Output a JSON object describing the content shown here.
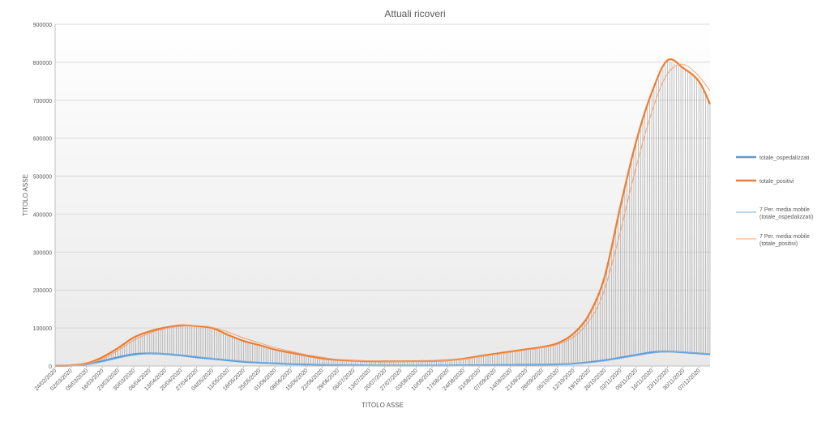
{
  "chart_data": {
    "type": "line",
    "title": "Attuali ricoveri",
    "xlabel": "TITOLO ASSE",
    "ylabel": "TITOLO ASSE",
    "ylim": [
      0,
      900000
    ],
    "y_ticks": [
      0,
      100000,
      200000,
      300000,
      400000,
      500000,
      600000,
      700000,
      800000,
      900000
    ],
    "y_tick_labels": [
      "0",
      "100000",
      "200000",
      "300000",
      "400000",
      "500000",
      "600000",
      "700000",
      "800000",
      "900000"
    ],
    "x_start": "2020-02-24",
    "x_end": "2020-12-12",
    "x_tick_labels": [
      "24/02/2020",
      "02/03/2020",
      "09/03/2020",
      "16/03/2020",
      "23/03/2020",
      "30/03/2020",
      "06/04/2020",
      "13/04/2020",
      "20/04/2020",
      "27/04/2020",
      "04/05/2020",
      "11/05/2020",
      "18/05/2020",
      "25/05/2020",
      "01/06/2020",
      "08/06/2020",
      "15/06/2020",
      "22/06/2020",
      "29/06/2020",
      "06/07/2020",
      "13/07/2020",
      "20/07/2020",
      "27/07/2020",
      "03/08/2020",
      "10/08/2020",
      "17/08/2020",
      "24/08/2020",
      "31/08/2020",
      "07/09/2020",
      "14/09/2020",
      "21/09/2020",
      "28/09/2020",
      "05/10/2020",
      "12/10/2020",
      "19/10/2020",
      "26/10/2020",
      "02/11/2020",
      "09/11/2020",
      "16/11/2020",
      "23/11/2020",
      "30/11/2020",
      "07/12/2020"
    ],
    "grid": true,
    "legend_position": "right",
    "drop_lines": true,
    "series": [
      {
        "name": "totale_ospedalizzati",
        "style": "thick",
        "color": "#5b9bd5",
        "points": [
          [
            "2020-02-24",
            150
          ],
          [
            "2020-03-02",
            1000
          ],
          [
            "2020-03-09",
            4300
          ],
          [
            "2020-03-16",
            13000
          ],
          [
            "2020-03-23",
            23000
          ],
          [
            "2020-03-30",
            31000
          ],
          [
            "2020-04-06",
            33000
          ],
          [
            "2020-04-13",
            31500
          ],
          [
            "2020-04-20",
            28000
          ],
          [
            "2020-04-27",
            23000
          ],
          [
            "2020-05-04",
            19000
          ],
          [
            "2020-05-11",
            15000
          ],
          [
            "2020-05-18",
            11000
          ],
          [
            "2020-05-25",
            8700
          ],
          [
            "2020-06-01",
            7000
          ],
          [
            "2020-06-08",
            5000
          ],
          [
            "2020-06-15",
            4000
          ],
          [
            "2020-06-22",
            3000
          ],
          [
            "2020-06-29",
            2100
          ],
          [
            "2020-07-06",
            1600
          ],
          [
            "2020-07-13",
            1200
          ],
          [
            "2020-07-20",
            1000
          ],
          [
            "2020-07-27",
            900
          ],
          [
            "2020-08-03",
            900
          ],
          [
            "2020-08-10",
            900
          ],
          [
            "2020-08-17",
            1100
          ],
          [
            "2020-08-24",
            1600
          ],
          [
            "2020-08-31",
            2000
          ],
          [
            "2020-09-07",
            2500
          ],
          [
            "2020-09-14",
            2800
          ],
          [
            "2020-09-21",
            3200
          ],
          [
            "2020-09-28",
            3600
          ],
          [
            "2020-10-05",
            4200
          ],
          [
            "2020-10-12",
            6000
          ],
          [
            "2020-10-19",
            10000
          ],
          [
            "2020-10-26",
            15000
          ],
          [
            "2020-11-02",
            22000
          ],
          [
            "2020-11-09",
            29000
          ],
          [
            "2020-11-16",
            36000
          ],
          [
            "2020-11-23",
            38000
          ],
          [
            "2020-11-30",
            36000
          ],
          [
            "2020-12-07",
            33000
          ],
          [
            "2020-12-12",
            31000
          ]
        ]
      },
      {
        "name": "totale_positivi",
        "style": "thick",
        "color": "#ed7d31",
        "points": [
          [
            "2020-02-24",
            200
          ],
          [
            "2020-03-02",
            1500
          ],
          [
            "2020-03-09",
            7000
          ],
          [
            "2020-03-16",
            23000
          ],
          [
            "2020-03-23",
            47000
          ],
          [
            "2020-03-30",
            75000
          ],
          [
            "2020-04-06",
            91000
          ],
          [
            "2020-04-13",
            101000
          ],
          [
            "2020-04-20",
            107000
          ],
          [
            "2020-04-27",
            105000
          ],
          [
            "2020-05-04",
            100000
          ],
          [
            "2020-05-11",
            82000
          ],
          [
            "2020-05-18",
            66000
          ],
          [
            "2020-05-25",
            55000
          ],
          [
            "2020-06-01",
            43000
          ],
          [
            "2020-06-08",
            35000
          ],
          [
            "2020-06-15",
            27000
          ],
          [
            "2020-06-22",
            20000
          ],
          [
            "2020-06-29",
            16000
          ],
          [
            "2020-07-06",
            14000
          ],
          [
            "2020-07-13",
            12500
          ],
          [
            "2020-07-20",
            12300
          ],
          [
            "2020-07-27",
            12400
          ],
          [
            "2020-08-03",
            12700
          ],
          [
            "2020-08-10",
            13000
          ],
          [
            "2020-08-17",
            15000
          ],
          [
            "2020-08-24",
            19000
          ],
          [
            "2020-08-31",
            26000
          ],
          [
            "2020-09-07",
            32000
          ],
          [
            "2020-09-14",
            38000
          ],
          [
            "2020-09-21",
            44000
          ],
          [
            "2020-09-28",
            50000
          ],
          [
            "2020-10-05",
            60000
          ],
          [
            "2020-10-12",
            85000
          ],
          [
            "2020-10-19",
            135000
          ],
          [
            "2020-10-26",
            235000
          ],
          [
            "2020-11-02",
            420000
          ],
          [
            "2020-11-09",
            590000
          ],
          [
            "2020-11-16",
            720000
          ],
          [
            "2020-11-23",
            805000
          ],
          [
            "2020-11-30",
            785000
          ],
          [
            "2020-12-07",
            750000
          ],
          [
            "2020-12-12",
            690000
          ]
        ]
      },
      {
        "name": "7 Per. media mobile (totale_ospedalizzati)",
        "style": "thin",
        "color": "#7fb1e3",
        "points": [
          [
            "2020-03-01",
            500
          ],
          [
            "2020-03-08",
            2800
          ],
          [
            "2020-03-15",
            9500
          ],
          [
            "2020-03-22",
            19000
          ],
          [
            "2020-03-29",
            27500
          ],
          [
            "2020-04-05",
            32000
          ],
          [
            "2020-04-12",
            32500
          ],
          [
            "2020-04-19",
            30000
          ],
          [
            "2020-04-26",
            25500
          ],
          [
            "2020-05-03",
            21000
          ],
          [
            "2020-05-10",
            17000
          ],
          [
            "2020-05-17",
            13000
          ],
          [
            "2020-05-24",
            10000
          ],
          [
            "2020-05-31",
            8000
          ],
          [
            "2020-06-07",
            6000
          ],
          [
            "2020-06-14",
            4500
          ],
          [
            "2020-06-21",
            3500
          ],
          [
            "2020-06-28",
            2500
          ],
          [
            "2020-07-05",
            1800
          ],
          [
            "2020-07-12",
            1400
          ],
          [
            "2020-07-19",
            1100
          ],
          [
            "2020-07-26",
            950
          ],
          [
            "2020-08-02",
            900
          ],
          [
            "2020-08-09",
            900
          ],
          [
            "2020-08-16",
            1000
          ],
          [
            "2020-08-23",
            1400
          ],
          [
            "2020-08-30",
            1800
          ],
          [
            "2020-09-06",
            2300
          ],
          [
            "2020-09-13",
            2700
          ],
          [
            "2020-09-20",
            3000
          ],
          [
            "2020-09-27",
            3400
          ],
          [
            "2020-10-04",
            3900
          ],
          [
            "2020-10-11",
            5000
          ],
          [
            "2020-10-18",
            8000
          ],
          [
            "2020-10-25",
            12500
          ],
          [
            "2020-11-01",
            19000
          ],
          [
            "2020-11-08",
            26000
          ],
          [
            "2020-11-15",
            33000
          ],
          [
            "2020-11-22",
            37000
          ],
          [
            "2020-11-29",
            37000
          ],
          [
            "2020-12-06",
            34500
          ],
          [
            "2020-12-12",
            32500
          ]
        ]
      },
      {
        "name": "7 Per. media mobile (totale_positivi)",
        "style": "thin",
        "color": "#f4a272",
        "points": [
          [
            "2020-03-01",
            800
          ],
          [
            "2020-03-08",
            4500
          ],
          [
            "2020-03-15",
            16000
          ],
          [
            "2020-03-22",
            37000
          ],
          [
            "2020-03-29",
            64000
          ],
          [
            "2020-04-05",
            84000
          ],
          [
            "2020-04-12",
            97000
          ],
          [
            "2020-04-19",
            104000
          ],
          [
            "2020-04-26",
            106000
          ],
          [
            "2020-05-03",
            103000
          ],
          [
            "2020-05-10",
            92000
          ],
          [
            "2020-05-17",
            76000
          ],
          [
            "2020-05-24",
            63000
          ],
          [
            "2020-05-31",
            50000
          ],
          [
            "2020-06-07",
            40000
          ],
          [
            "2020-06-14",
            31000
          ],
          [
            "2020-06-21",
            24000
          ],
          [
            "2020-06-28",
            18000
          ],
          [
            "2020-07-05",
            15000
          ],
          [
            "2020-07-12",
            13500
          ],
          [
            "2020-07-19",
            12500
          ],
          [
            "2020-07-26",
            12300
          ],
          [
            "2020-08-02",
            12500
          ],
          [
            "2020-08-09",
            12800
          ],
          [
            "2020-08-16",
            14000
          ],
          [
            "2020-08-23",
            17000
          ],
          [
            "2020-08-30",
            23000
          ],
          [
            "2020-09-06",
            29000
          ],
          [
            "2020-09-13",
            35000
          ],
          [
            "2020-09-20",
            41000
          ],
          [
            "2020-09-27",
            47000
          ],
          [
            "2020-10-04",
            55000
          ],
          [
            "2020-10-11",
            72000
          ],
          [
            "2020-10-18",
            110000
          ],
          [
            "2020-10-25",
            185000
          ],
          [
            "2020-11-01",
            330000
          ],
          [
            "2020-11-08",
            500000
          ],
          [
            "2020-11-15",
            650000
          ],
          [
            "2020-11-22",
            760000
          ],
          [
            "2020-11-29",
            795000
          ],
          [
            "2020-12-06",
            770000
          ],
          [
            "2020-12-12",
            725000
          ]
        ]
      }
    ]
  }
}
